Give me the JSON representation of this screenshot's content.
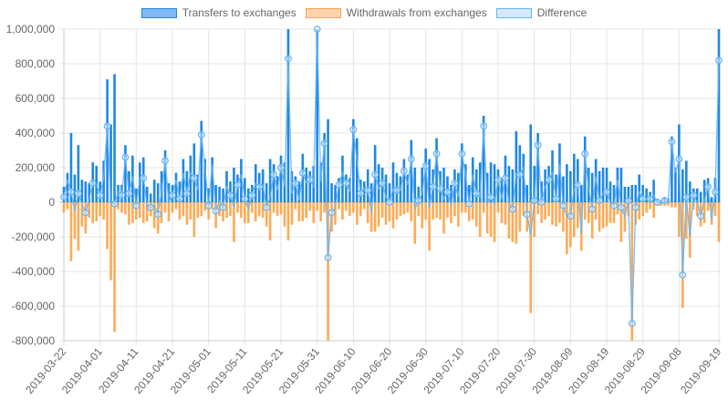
{
  "chart_data": {
    "type": "bar",
    "x_start": "2019-03-22",
    "x_end": "2019-09-19",
    "x_ticks": [
      "2019-03-22",
      "2019-04-01",
      "2019-04-11",
      "2019-04-21",
      "2019-05-01",
      "2019-05-11",
      "2019-05-21",
      "2019-05-31",
      "2019-06-10",
      "2019-06-20",
      "2019-06-30",
      "2019-07-10",
      "2019-07-20",
      "2019-07-30",
      "2019-08-09",
      "2019-08-19",
      "2019-08-29",
      "2019-09-08",
      "2019-09-19"
    ],
    "y_ticks": [
      "1,000,000",
      "800,000",
      "600,000",
      "400,000",
      "200,000",
      "0",
      "-200,000",
      "-400,000",
      "-600,000",
      "-800,000"
    ],
    "ylim": [
      -800000,
      1000000
    ],
    "grid": true,
    "legend": "top",
    "series": [
      {
        "name": "Transfers to exchanges",
        "type": "bar",
        "color": "#1e88e5",
        "values": [
          90000,
          170000,
          400000,
          160000,
          330000,
          130000,
          120000,
          110000,
          230000,
          210000,
          120000,
          240000,
          710000,
          450000,
          740000,
          100000,
          100000,
          330000,
          180000,
          270000,
          80000,
          230000,
          260000,
          90000,
          50000,
          130000,
          110000,
          180000,
          300000,
          110000,
          100000,
          170000,
          120000,
          250000,
          180000,
          270000,
          340000,
          160000,
          470000,
          250000,
          80000,
          260000,
          100000,
          90000,
          80000,
          180000,
          120000,
          200000,
          160000,
          250000,
          140000,
          80000,
          100000,
          220000,
          170000,
          190000,
          110000,
          250000,
          220000,
          150000,
          270000,
          230000,
          1050000,
          180000,
          150000,
          120000,
          280000,
          200000,
          180000,
          210000,
          1050000,
          230000,
          400000,
          480000,
          110000,
          100000,
          140000,
          270000,
          160000,
          140000,
          480000,
          370000,
          130000,
          120000,
          190000,
          110000,
          330000,
          220000,
          200000,
          160000,
          110000,
          230000,
          170000,
          150000,
          250000,
          160000,
          360000,
          200000,
          90000,
          200000,
          310000,
          250000,
          190000,
          370000,
          180000,
          200000,
          150000,
          100000,
          190000,
          170000,
          340000,
          220000,
          100000,
          260000,
          190000,
          230000,
          500000,
          170000,
          230000,
          220000,
          190000,
          140000,
          270000,
          210000,
          190000,
          410000,
          330000,
          280000,
          100000,
          450000,
          210000,
          400000,
          120000,
          190000,
          210000,
          300000,
          160000,
          340000,
          150000,
          220000,
          180000,
          280000,
          250000,
          100000,
          380000,
          200000,
          170000,
          250000,
          180000,
          200000,
          200000,
          120000,
          100000,
          200000,
          200000,
          90000,
          90000,
          100000,
          100000,
          160000,
          100000,
          80000,
          60000,
          130000,
          20000,
          10000,
          30000,
          20000,
          380000,
          200000,
          450000,
          190000,
          240000,
          120000,
          80000,
          80000,
          60000,
          130000,
          140000,
          30000,
          140000,
          1050000
        ]
      },
      {
        "name": "Withdrawals from exchanges",
        "type": "bar",
        "color": "#ffa142",
        "values": [
          -60000,
          -40000,
          -340000,
          -210000,
          -280000,
          -140000,
          -180000,
          -90000,
          -120000,
          -110000,
          -80000,
          -100000,
          -270000,
          -450000,
          -750000,
          -40000,
          -60000,
          -70000,
          -130000,
          -120000,
          -100000,
          -90000,
          -120000,
          -110000,
          -80000,
          -150000,
          -180000,
          -120000,
          -60000,
          -110000,
          -60000,
          -40000,
          -100000,
          -80000,
          -130000,
          -100000,
          -200000,
          -90000,
          -80000,
          -50000,
          -100000,
          -40000,
          -150000,
          -80000,
          -110000,
          -90000,
          -80000,
          -230000,
          -60000,
          -90000,
          -120000,
          -120000,
          -60000,
          -110000,
          -80000,
          -90000,
          -140000,
          -220000,
          -60000,
          -80000,
          -70000,
          -140000,
          -220000,
          -130000,
          -40000,
          -110000,
          -110000,
          -90000,
          -50000,
          -120000,
          -50000,
          -110000,
          -60000,
          -800000,
          -170000,
          -130000,
          -40000,
          -100000,
          -50000,
          -80000,
          -60000,
          -130000,
          -80000,
          -40000,
          -120000,
          -170000,
          -170000,
          -140000,
          -90000,
          -130000,
          -110000,
          -150000,
          -100000,
          -80000,
          -70000,
          -60000,
          -110000,
          -240000,
          -80000,
          -150000,
          -100000,
          -280000,
          -100000,
          -90000,
          -100000,
          -180000,
          -90000,
          -120000,
          -80000,
          -140000,
          -60000,
          -60000,
          -110000,
          -100000,
          -140000,
          -200000,
          -60000,
          -180000,
          -200000,
          -230000,
          -60000,
          -120000,
          -130000,
          -210000,
          -230000,
          -240000,
          -170000,
          -80000,
          -170000,
          -640000,
          -200000,
          -70000,
          -120000,
          -100000,
          -80000,
          -130000,
          -140000,
          -120000,
          -170000,
          -300000,
          -260000,
          -200000,
          -150000,
          -280000,
          -100000,
          -120000,
          -210000,
          -100000,
          -170000,
          -150000,
          -140000,
          -120000,
          -120000,
          -70000,
          -230000,
          -170000,
          -80000,
          -800000,
          -130000,
          -100000,
          -80000,
          -60000,
          -40000,
          -90000,
          -20000,
          -20000,
          -20000,
          -20000,
          -30000,
          -30000,
          -200000,
          -610000,
          -210000,
          -320000,
          -40000,
          -80000,
          -140000,
          -120000,
          -50000,
          -130000,
          -80000,
          -230000
        ]
      },
      {
        "name": "Difference",
        "type": "line",
        "color": "#64b5f6",
        "derived_from": "sum of the two bar series"
      }
    ]
  }
}
